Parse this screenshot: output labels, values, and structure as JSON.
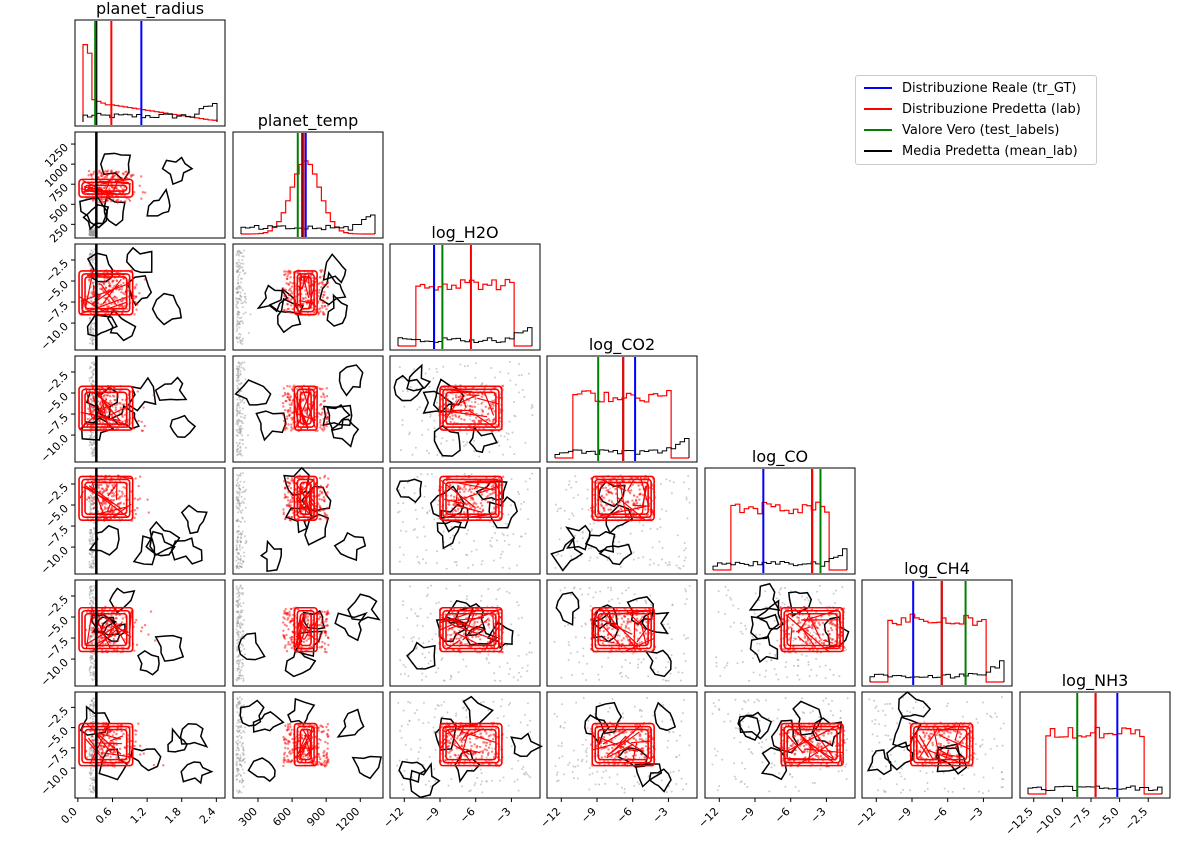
{
  "chart_data": {
    "type": "corner",
    "variables": [
      "planet_radius",
      "planet_temp",
      "log_H2O",
      "log_CO2",
      "log_CO",
      "log_CH4",
      "log_NH3"
    ],
    "legend": [
      {
        "label": "Distribuzione Reale (tr_GT)",
        "color": "#0000ff"
      },
      {
        "label": "Distribuzione Predetta (lab)",
        "color": "#ff0000"
      },
      {
        "label": "Valore Vero (test_labels)",
        "color": "#008000"
      },
      {
        "label": "Media Predetta (mean_lab)",
        "color": "#000000"
      }
    ],
    "x_ticks": {
      "planet_radius": [
        "0.0",
        "0.6",
        "1.2",
        "1.8",
        "2.4"
      ],
      "planet_temp": [
        "300",
        "600",
        "900",
        "1200"
      ],
      "log_H2O": [
        "−12",
        "−9",
        "−6",
        "−3"
      ],
      "log_CO2": [
        "−12",
        "−9",
        "−6",
        "−3"
      ],
      "log_CO": [
        "−12",
        "−9",
        "−6",
        "−3"
      ],
      "log_CH4": [
        "−12",
        "−9",
        "−6",
        "−3"
      ],
      "log_NH3": [
        "−12.5",
        "−10.0",
        "−7.5",
        "−5.0",
        "−2.5"
      ]
    },
    "y_ticks": {
      "planet_temp": [
        "250",
        "500",
        "750",
        "1000",
        "1250"
      ],
      "log_H2O": [
        "−2.5",
        "−5.0",
        "−7.5",
        "−10.0"
      ],
      "log_CO2": [
        "−2.5",
        "−5.0",
        "−7.5",
        "−10.0"
      ],
      "log_CO": [
        "−2.5",
        "−5.0",
        "−7.5",
        "−10.0"
      ],
      "log_CH4": [
        "−2.5",
        "−5.0",
        "−7.5",
        "−10.0"
      ],
      "log_NH3": [
        "−2.5",
        "−5.0",
        "−7.5",
        "−10.0"
      ]
    },
    "ranges": {
      "planet_radius": [
        -0.05,
        2.55
      ],
      "planet_temp": [
        80,
        1400
      ],
      "log_H2O": [
        -13.2,
        -0.6
      ],
      "log_CO2": [
        -13.2,
        -0.6
      ],
      "log_CO": [
        -13.2,
        -0.6
      ],
      "log_CH4": [
        -13.2,
        -0.6
      ],
      "log_NH3": [
        -13.7,
        -0.6
      ]
    },
    "reference_values": {
      "planet_radius": {
        "true_distribution": 1.1,
        "predicted": 0.58,
        "true_value": 0.3,
        "predicted_mean": 0.32
      },
      "planet_temp": {
        "true_distribution": 720,
        "predicted": 700,
        "true_value": 650,
        "predicted_mean": 690
      },
      "log_H2O": {
        "true_distribution": -9.5,
        "predicted": -6.4,
        "true_value": -8.8,
        "predicted_mean": -9.5
      },
      "log_CO2": {
        "true_distribution": -5.8,
        "predicted": -6.8,
        "true_value": -8.9,
        "predicted_mean": -6.8
      },
      "log_CO": {
        "true_distribution": -8.3,
        "predicted": -4.2,
        "true_value": -3.5,
        "predicted_mean": -4.2
      },
      "log_CH4": {
        "true_distribution": -8.9,
        "predicted": -6.5,
        "true_value": -4.5,
        "predicted_mean": -6.5
      },
      "log_NH3": {
        "true_distribution": -5.2,
        "predicted": -7.1,
        "true_value": -8.7,
        "predicted_mean": -7.1
      }
    }
  }
}
